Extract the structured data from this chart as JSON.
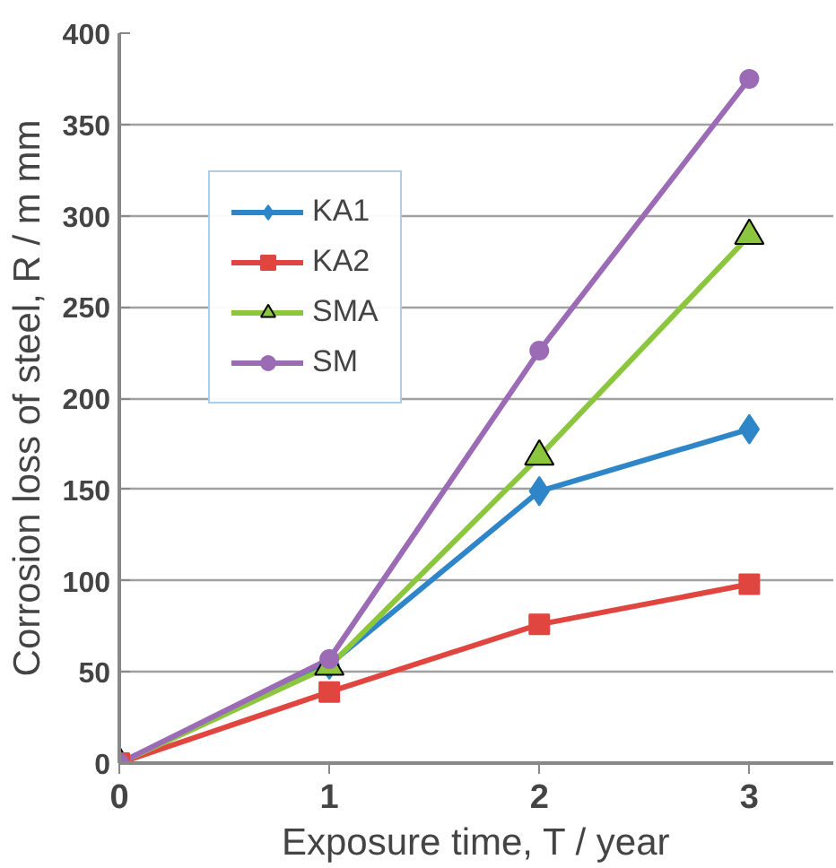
{
  "chart_data": {
    "type": "line",
    "xlabel": "Exposure time, T / year",
    "ylabel": "Corrosion loss of steel, R / m mm",
    "x": [
      0,
      1,
      2,
      3
    ],
    "xlim": [
      0,
      3.4
    ],
    "xticks": [
      0,
      1,
      2,
      3
    ],
    "ylim": [
      0,
      400
    ],
    "yticks": [
      0,
      50,
      100,
      150,
      200,
      250,
      300,
      350,
      400
    ],
    "grid": "y",
    "legend": "top left",
    "line_style": "solid",
    "series": [
      {
        "name": "KA1",
        "color": "#2e86c9",
        "marker": "diamond",
        "values": [
          0,
          54,
          149,
          183
        ]
      },
      {
        "name": "KA2",
        "color": "#e0463f",
        "marker": "square",
        "values": [
          0,
          39,
          76,
          98
        ]
      },
      {
        "name": "SMA",
        "color": "#8cc63f",
        "marker": "triangle",
        "values": [
          0,
          53,
          168,
          289
        ]
      },
      {
        "name": "SM",
        "color": "#9b6bb5",
        "marker": "circle",
        "values": [
          0,
          57,
          226,
          375
        ]
      }
    ]
  }
}
